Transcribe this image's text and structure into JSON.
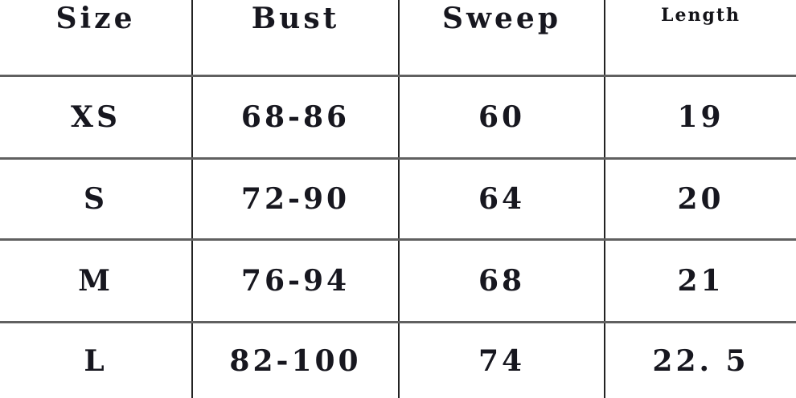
{
  "chart_data": {
    "type": "table",
    "columns": [
      "Size",
      "Bust",
      "Sweep",
      "Length"
    ],
    "rows": [
      {
        "cells": [
          "XS",
          "68-86",
          "60",
          "19"
        ]
      },
      {
        "cells": [
          "S",
          "72-90",
          "64",
          "20"
        ]
      },
      {
        "cells": [
          "M",
          "76-94",
          "68",
          "21"
        ]
      },
      {
        "cells": [
          "L",
          "82-100",
          "74",
          "22. 5"
        ]
      }
    ],
    "layout": {
      "grid": "on",
      "outer_border": "cropped-none"
    }
  },
  "colors": {
    "text": "#17171f",
    "horizontal_rule": "#606060",
    "vertical_rule": "#232323",
    "background": "#ffffff"
  }
}
